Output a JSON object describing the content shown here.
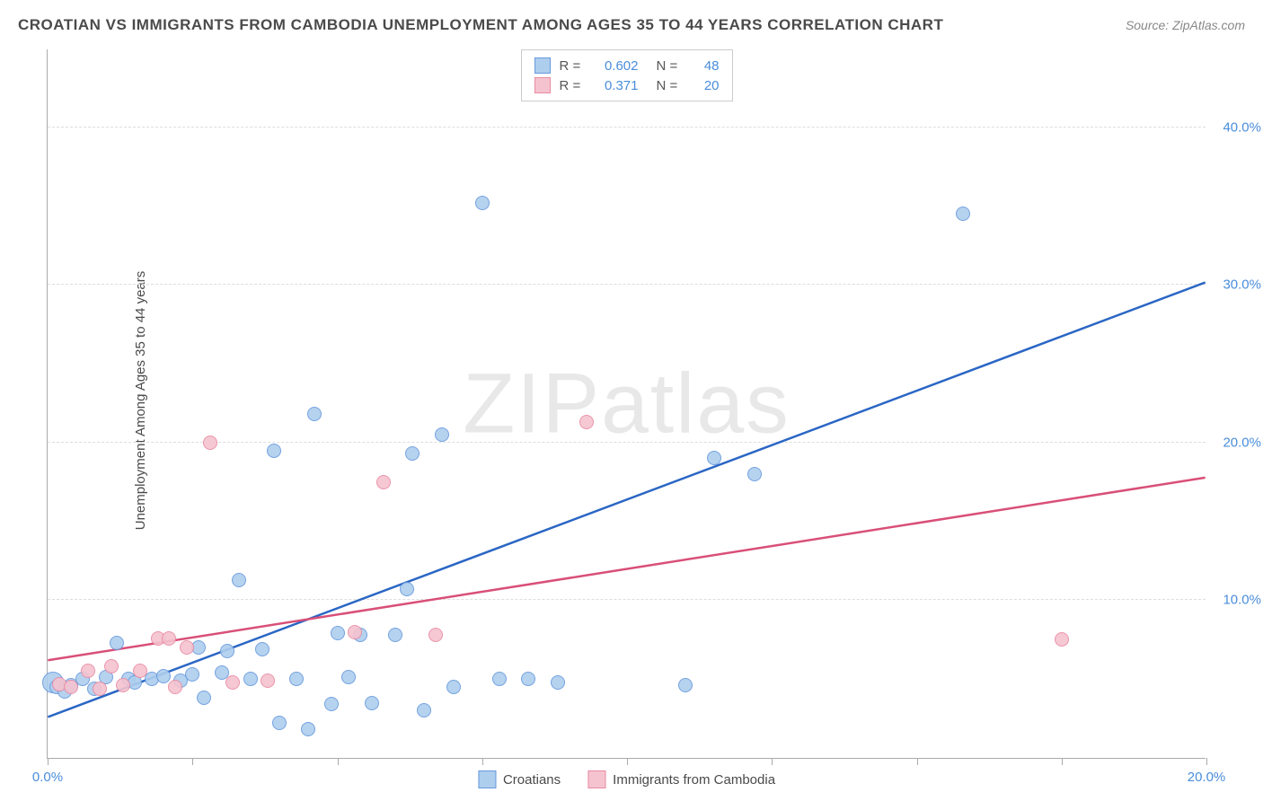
{
  "title": "CROATIAN VS IMMIGRANTS FROM CAMBODIA UNEMPLOYMENT AMONG AGES 35 TO 44 YEARS CORRELATION CHART",
  "source": "Source: ZipAtlas.com",
  "ylabel": "Unemployment Among Ages 35 to 44 years",
  "watermark": "ZIPatlas",
  "chart": {
    "type": "scatter",
    "xlim": [
      0,
      20
    ],
    "ylim": [
      0,
      45
    ],
    "x_ticks": [
      0,
      2.5,
      5,
      7.5,
      10,
      12.5,
      15,
      17.5,
      20
    ],
    "x_tick_labels": {
      "0": "0.0%",
      "20": "20.0%"
    },
    "y_ticks": [
      10,
      20,
      30,
      40
    ],
    "y_tick_labels": {
      "10": "10.0%",
      "20": "20.0%",
      "30": "30.0%",
      "40": "40.0%"
    },
    "grid_color": "#dddddd",
    "background_color": "#ffffff",
    "axis_color": "#aaaaaa",
    "tick_label_color": "#4a8ddb",
    "series": [
      {
        "name": "Croatians",
        "fill_color": "#aeceee",
        "stroke_color": "#6699dd",
        "r_value": "0.602",
        "n_value": "48",
        "trend_line": {
          "x1": 0,
          "y1": 2.6,
          "x2": 20,
          "y2": 30.2,
          "color": "#2a66c4",
          "width": 2.5
        },
        "points": [
          {
            "x": 0.1,
            "y": 4.8,
            "size": 24
          },
          {
            "x": 0.15,
            "y": 4.5
          },
          {
            "x": 0.3,
            "y": 4.2
          },
          {
            "x": 0.4,
            "y": 4.6
          },
          {
            "x": 0.6,
            "y": 5.0
          },
          {
            "x": 0.8,
            "y": 4.4
          },
          {
            "x": 1.0,
            "y": 5.1
          },
          {
            "x": 1.2,
            "y": 7.3
          },
          {
            "x": 1.4,
            "y": 5.0
          },
          {
            "x": 1.5,
            "y": 4.8
          },
          {
            "x": 1.8,
            "y": 5.0
          },
          {
            "x": 2.0,
            "y": 5.2
          },
          {
            "x": 2.3,
            "y": 4.9
          },
          {
            "x": 2.5,
            "y": 5.3
          },
          {
            "x": 2.6,
            "y": 7.0
          },
          {
            "x": 2.7,
            "y": 3.8
          },
          {
            "x": 3.0,
            "y": 5.4
          },
          {
            "x": 3.1,
            "y": 6.8
          },
          {
            "x": 3.3,
            "y": 11.3
          },
          {
            "x": 3.5,
            "y": 5.0
          },
          {
            "x": 3.7,
            "y": 6.9
          },
          {
            "x": 3.9,
            "y": 19.5
          },
          {
            "x": 4.0,
            "y": 2.2
          },
          {
            "x": 4.3,
            "y": 5.0
          },
          {
            "x": 4.5,
            "y": 1.8
          },
          {
            "x": 4.6,
            "y": 21.8
          },
          {
            "x": 4.9,
            "y": 3.4
          },
          {
            "x": 5.0,
            "y": 7.9
          },
          {
            "x": 5.2,
            "y": 5.1
          },
          {
            "x": 5.4,
            "y": 7.8
          },
          {
            "x": 5.6,
            "y": 3.5
          },
          {
            "x": 6.0,
            "y": 7.8
          },
          {
            "x": 6.2,
            "y": 10.7
          },
          {
            "x": 6.3,
            "y": 19.3
          },
          {
            "x": 6.5,
            "y": 3.0
          },
          {
            "x": 6.8,
            "y": 20.5
          },
          {
            "x": 7.0,
            "y": 4.5
          },
          {
            "x": 7.5,
            "y": 35.2
          },
          {
            "x": 7.8,
            "y": 5.0
          },
          {
            "x": 8.3,
            "y": 5.0
          },
          {
            "x": 8.8,
            "y": 4.8
          },
          {
            "x": 11.0,
            "y": 4.6
          },
          {
            "x": 11.5,
            "y": 19.0
          },
          {
            "x": 12.2,
            "y": 18.0
          },
          {
            "x": 15.8,
            "y": 34.5
          }
        ]
      },
      {
        "name": "Immigrants from Cambodia",
        "fill_color": "#f5c3cf",
        "stroke_color": "#e88aa2",
        "r_value": "0.371",
        "n_value": "20",
        "trend_line": {
          "x1": 0,
          "y1": 6.2,
          "x2": 20,
          "y2": 17.8,
          "color": "#d94f78",
          "width": 2.5
        },
        "points": [
          {
            "x": 0.2,
            "y": 4.7
          },
          {
            "x": 0.4,
            "y": 4.5
          },
          {
            "x": 0.7,
            "y": 5.5
          },
          {
            "x": 0.9,
            "y": 4.4
          },
          {
            "x": 1.1,
            "y": 5.8
          },
          {
            "x": 1.3,
            "y": 4.6
          },
          {
            "x": 1.6,
            "y": 5.5
          },
          {
            "x": 1.9,
            "y": 7.6
          },
          {
            "x": 2.1,
            "y": 7.6
          },
          {
            "x": 2.2,
            "y": 4.5
          },
          {
            "x": 2.4,
            "y": 7.0
          },
          {
            "x": 2.8,
            "y": 20.0
          },
          {
            "x": 3.2,
            "y": 4.8
          },
          {
            "x": 3.8,
            "y": 4.9
          },
          {
            "x": 5.3,
            "y": 8.0
          },
          {
            "x": 5.8,
            "y": 17.5
          },
          {
            "x": 6.7,
            "y": 7.8
          },
          {
            "x": 9.3,
            "y": 21.3
          },
          {
            "x": 17.5,
            "y": 7.5
          }
        ]
      }
    ]
  },
  "legend_top": {
    "r_label": "R =",
    "n_label": "N ="
  },
  "legend_bottom": {}
}
